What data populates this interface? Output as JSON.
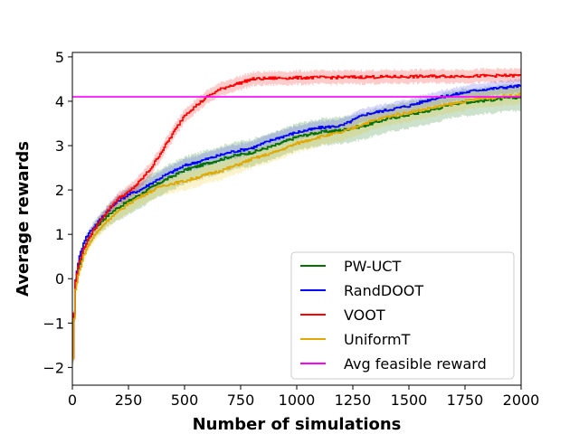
{
  "chart_data": {
    "type": "line",
    "title": "",
    "xlabel": "Number of simulations",
    "ylabel": "Average rewards",
    "xlim": [
      0,
      2000
    ],
    "ylim": [
      -2.4,
      5.1
    ],
    "xticks": [
      0,
      250,
      500,
      750,
      1000,
      1250,
      1500,
      1750,
      2000
    ],
    "yticks": [
      -2,
      -1,
      0,
      1,
      2,
      3,
      4,
      5
    ],
    "ytick_labels": [
      "−2",
      "−1",
      "0",
      "1",
      "2",
      "3",
      "4",
      "5"
    ],
    "grid": false,
    "legend_position": "lower-right",
    "series": [
      {
        "name": "PW-UCT",
        "color": "#007000",
        "band_color": "#007000",
        "x": [
          0,
          10,
          25,
          50,
          75,
          100,
          150,
          200,
          250,
          300,
          400,
          500,
          600,
          700,
          800,
          900,
          1000,
          1100,
          1200,
          1300,
          1400,
          1500,
          1600,
          1700,
          1800,
          1900,
          2000
        ],
        "y": [
          -1.8,
          -0.2,
          0.2,
          0.7,
          0.95,
          1.15,
          1.4,
          1.6,
          1.75,
          1.9,
          2.2,
          2.45,
          2.6,
          2.75,
          2.85,
          3.0,
          3.2,
          3.3,
          3.35,
          3.45,
          3.6,
          3.7,
          3.8,
          3.95,
          4.0,
          4.05,
          4.1
        ],
        "band": 0.3
      },
      {
        "name": "RandDOOT",
        "color": "#0000ff",
        "band_color": "#3333ff",
        "x": [
          0,
          10,
          25,
          50,
          75,
          100,
          150,
          200,
          250,
          300,
          400,
          500,
          600,
          700,
          800,
          900,
          1000,
          1100,
          1200,
          1300,
          1400,
          1500,
          1600,
          1700,
          1800,
          1900,
          2000
        ],
        "y": [
          -1.8,
          -0.1,
          0.4,
          0.85,
          1.05,
          1.2,
          1.5,
          1.75,
          1.9,
          2.0,
          2.3,
          2.55,
          2.7,
          2.85,
          2.95,
          3.15,
          3.3,
          3.4,
          3.45,
          3.7,
          3.8,
          3.9,
          4.05,
          4.15,
          4.25,
          4.3,
          4.35
        ],
        "band": 0.15
      },
      {
        "name": "VOOT",
        "color": "#ff0000",
        "band_color": "#ff0000",
        "x": [
          0,
          10,
          25,
          50,
          75,
          100,
          150,
          200,
          250,
          300,
          350,
          400,
          450,
          500,
          550,
          600,
          650,
          700,
          750,
          800,
          900,
          1000,
          1200,
          1400,
          1600,
          1800,
          2000
        ],
        "y": [
          -1.8,
          -0.1,
          0.3,
          0.7,
          0.95,
          1.15,
          1.5,
          1.8,
          1.95,
          2.2,
          2.5,
          2.9,
          3.3,
          3.7,
          3.9,
          4.1,
          4.25,
          4.35,
          4.42,
          4.5,
          4.52,
          4.53,
          4.54,
          4.55,
          4.56,
          4.57,
          4.58
        ],
        "band": 0.15
      },
      {
        "name": "UniformT",
        "color": "#e0a800",
        "band_color": "#e6c200",
        "x": [
          0,
          10,
          25,
          50,
          75,
          100,
          150,
          200,
          250,
          300,
          400,
          500,
          600,
          700,
          800,
          900,
          1000,
          1100,
          1200,
          1300,
          1400,
          1500,
          1600,
          1700,
          1800,
          1900,
          2000
        ],
        "y": [
          -1.8,
          -0.3,
          0.1,
          0.55,
          0.8,
          1.0,
          1.3,
          1.5,
          1.7,
          1.85,
          2.1,
          2.2,
          2.35,
          2.5,
          2.7,
          2.85,
          3.05,
          3.2,
          3.3,
          3.5,
          3.65,
          3.75,
          3.85,
          3.95,
          4.05,
          4.1,
          4.15
        ],
        "band": 0.2
      },
      {
        "name": "Avg feasible reward",
        "color": "#ff00ff",
        "x": [
          0,
          2000
        ],
        "y": [
          4.1,
          4.1
        ],
        "band": 0
      }
    ]
  }
}
